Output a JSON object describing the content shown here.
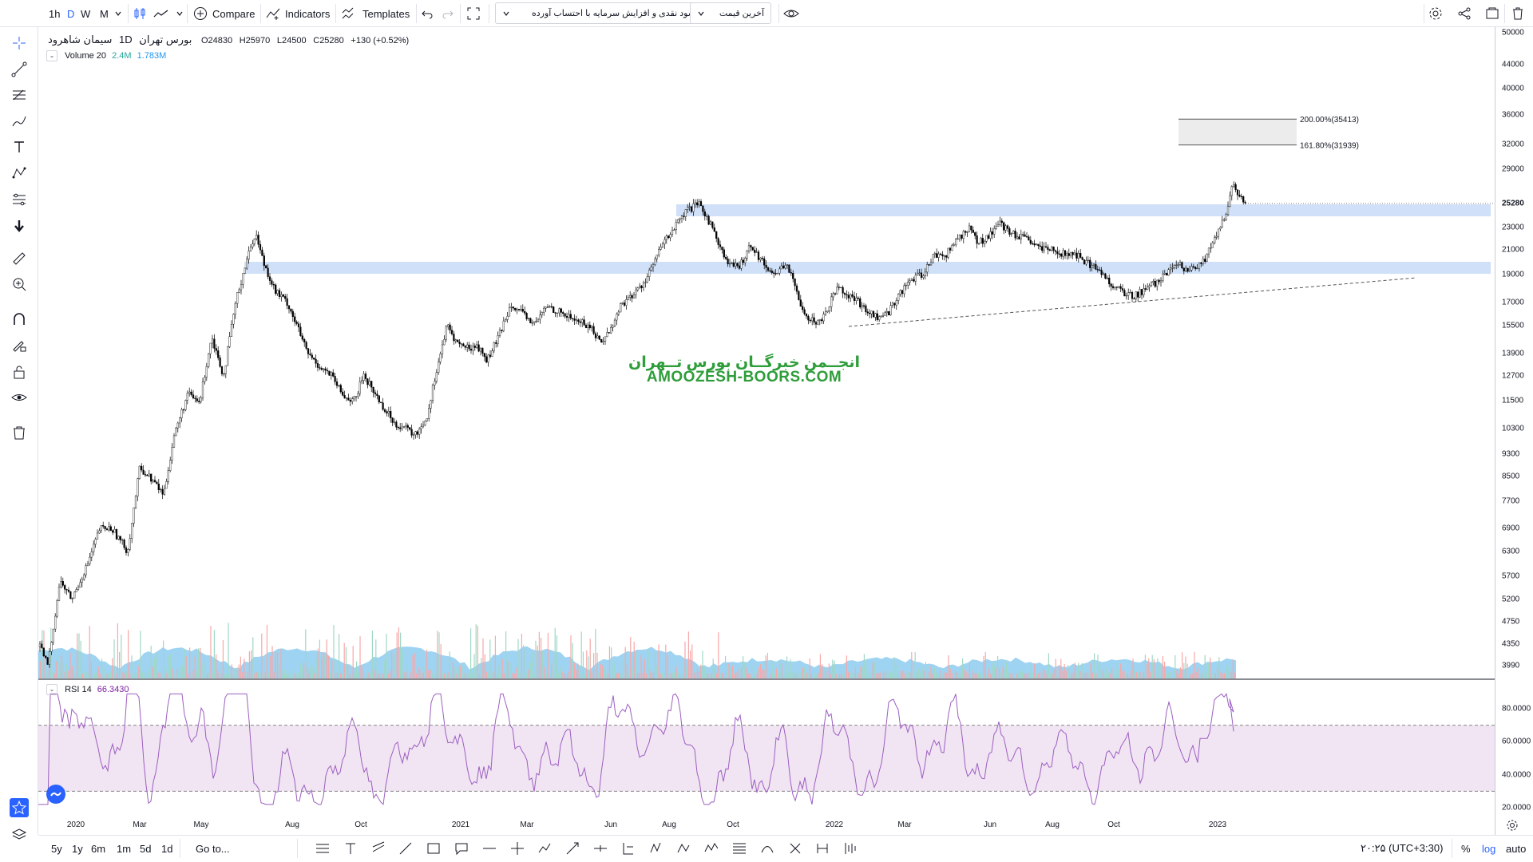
{
  "toolbar": {
    "intervals": [
      "1h",
      "D",
      "W",
      "M"
    ],
    "active_interval": "D",
    "compare_label": "Compare",
    "indicators_label": "Indicators",
    "templates_label": "Templates",
    "dropdown_1": "سود نقدی و افزایش سرمایه با احتساب آورده",
    "dropdown_2": "آخرین قیمت"
  },
  "symbol": {
    "name": "سیمان شاهرود",
    "interval": "1D",
    "exchange": "بورس تهران",
    "open": "O24830",
    "high": "H25970",
    "low": "L24500",
    "close": "C25280",
    "change": "+130 (+0.52%)"
  },
  "volume": {
    "label": "Volume 20",
    "value1": "2.4M",
    "value2": "1.783M"
  },
  "rsi": {
    "label": "RSI 14",
    "value": "66.3430"
  },
  "price_scale": [
    "50000",
    "44000",
    "40000",
    "36000",
    "32000",
    "29000",
    "23000",
    "21000",
    "19000",
    "17000",
    "15500",
    "13900",
    "12700",
    "11500",
    "10300",
    "9300",
    "8500",
    "7700",
    "6900",
    "6300",
    "5700",
    "5200",
    "4750",
    "4350",
    "3990"
  ],
  "current_price_tag": "25280",
  "rsi_scale": [
    "80.0000",
    "60.0000",
    "40.0000",
    "20.0000"
  ],
  "fib_levels": [
    {
      "label": "200.00%(35413)",
      "price": 35413
    },
    {
      "label": "161.80%(31939)",
      "price": 31939
    }
  ],
  "time_axis": [
    "2020",
    "Mar",
    "May",
    "Aug",
    "Oct",
    "2021",
    "Mar",
    "Jun",
    "Aug",
    "Oct",
    "2022",
    "Mar",
    "Jun",
    "Aug",
    "Oct",
    "2023"
  ],
  "watermark": {
    "line1": "انجــمن خبرگــان بورس تــهران",
    "line2": "AMOOZESH-BOORS.COM"
  },
  "bottom": {
    "ranges": [
      "5y",
      "1y",
      "6m",
      "1m",
      "5d",
      "1d"
    ],
    "goto_label": "Go to...",
    "clock": "۲۰:۲۵ (UTC+3:30)",
    "percent_label": "%",
    "log_label": "log",
    "auto_label": "auto"
  },
  "colors": {
    "accent": "#2962ff",
    "zone": "#cfe0f8",
    "rsi_line": "#9c5fc0",
    "rsi_band": "#f1e4f3",
    "volume_area": "#7fc4ee",
    "watermark": "#2e9d3a",
    "candle": "#000000"
  }
}
